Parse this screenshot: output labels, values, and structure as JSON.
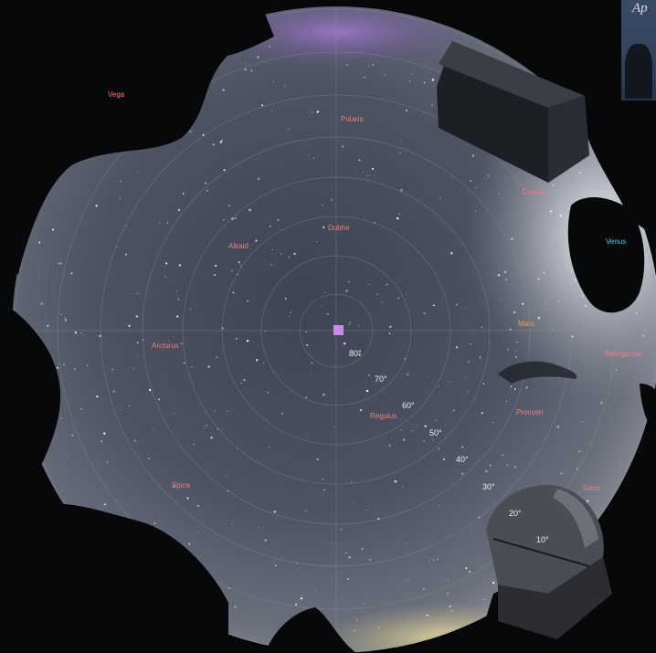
{
  "inset": {
    "text": "Ap"
  },
  "center_marker_color": "#c98ae8",
  "stars": [
    {
      "name": "Vega",
      "color": "#f27b7b"
    },
    {
      "name": "Polaris",
      "color": "#f27b7b"
    },
    {
      "name": "Capella",
      "color": "#f27b7b"
    },
    {
      "name": "Dubhe",
      "color": "#f27b7b"
    },
    {
      "name": "Alkaid",
      "color": "#f27b7b"
    },
    {
      "name": "Venus",
      "color": "#3fd8e0"
    },
    {
      "name": "Mars",
      "color": "#f5a340"
    },
    {
      "name": "Arcturus",
      "color": "#f27b7b"
    },
    {
      "name": "Betelgeuse",
      "color": "#f27b7b"
    },
    {
      "name": "Regulus",
      "color": "#f27b7b"
    },
    {
      "name": "Procyon",
      "color": "#f27b7b"
    },
    {
      "name": "Spica",
      "color": "#f27b7b"
    },
    {
      "name": "Sirius",
      "color": "#f27b7b"
    }
  ],
  "altitude_labels": [
    "80°",
    "70°",
    "60°",
    "50°",
    "40°",
    "30°",
    "20°",
    "10°"
  ]
}
